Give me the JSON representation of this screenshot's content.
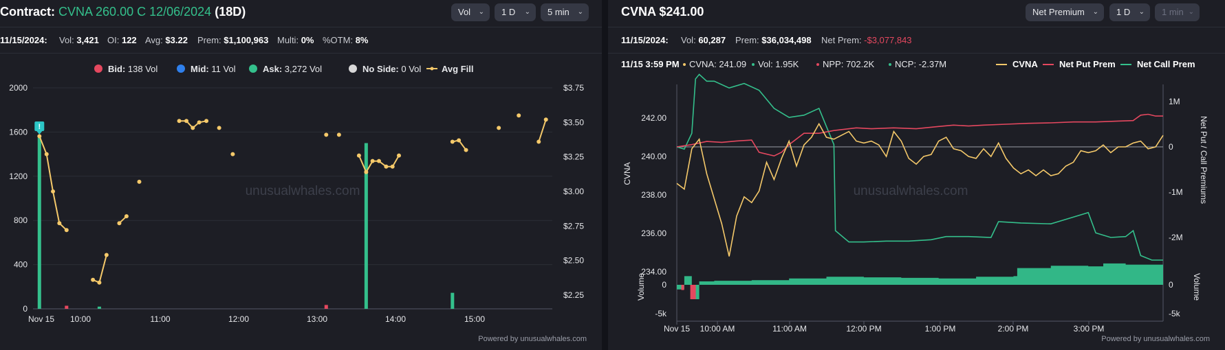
{
  "left": {
    "title_prefix": "Contract:",
    "contract": "CVNA 260.00 C 12/06/2024",
    "dte": "(18D)",
    "controls": [
      "Vol",
      "1 D",
      "5 min"
    ],
    "stats": {
      "date": "11/15/2024:",
      "vol_label": "Vol:",
      "vol": "3,421",
      "oi_label": "OI:",
      "oi": "122",
      "avg_label": "Avg:",
      "avg": "$3.22",
      "prem_label": "Prem:",
      "prem": "$1,100,963",
      "multi_label": "Multi:",
      "multi": "0%",
      "otm_label": "%OTM:",
      "otm": "8%"
    },
    "legend": [
      {
        "name": "Bid:",
        "value": "138 Vol",
        "color": "#e5485f",
        "shape": "dot"
      },
      {
        "name": "Mid:",
        "value": "11 Vol",
        "color": "#2f80ed",
        "shape": "dot"
      },
      {
        "name": "Ask:",
        "value": "3,272 Vol",
        "color": "#34c08c",
        "shape": "dot"
      },
      {
        "name": "No Side:",
        "value": "0 Vol",
        "color": "#d8d8d8",
        "shape": "dot"
      },
      {
        "name": "Avg Fill",
        "value": "",
        "color": "#f5c96a",
        "shape": "line"
      }
    ],
    "watermark": "unusualwhales.com",
    "powered": "Powered by unusualwhales.com",
    "marker_glyph": "!"
  },
  "right": {
    "ticker": "CVNA",
    "price": "$241.00",
    "controls": [
      "Net Premium",
      "1 D",
      "1 min"
    ],
    "stats": {
      "date": "11/15/2024:",
      "vol_label": "Vol:",
      "vol": "60,287",
      "prem_label": "Prem:",
      "prem": "$36,034,498",
      "netprem_label": "Net Prem:",
      "netprem": "-$3,077,843"
    },
    "tooltip": {
      "time": "11/15 3:59 PM",
      "cvna": "CVNA: 241.09",
      "vol": "Vol: 1.95K",
      "npp": "NPP: 702.2K",
      "ncp": "NCP: -2.37M"
    },
    "legend": [
      {
        "name": "CVNA",
        "color": "#f5c96a"
      },
      {
        "name": "Net Put Prem",
        "color": "#e5485f"
      },
      {
        "name": "Net Call Prem",
        "color": "#34c08c"
      }
    ],
    "watermark": "unusualwhales.com",
    "powered": "Powered by unusualwhales.com"
  },
  "chart_data": [
    {
      "type": "bar",
      "title": "",
      "x_ticks": [
        "Nov 15",
        "10:00",
        "11:00",
        "12:00",
        "13:00",
        "14:00",
        "15:00"
      ],
      "y_left_ticks": [
        "0",
        "400",
        "800",
        "1200",
        "1600",
        "2000"
      ],
      "y_right_ticks": [
        "$2.25",
        "$2.50",
        "$2.75",
        "$3.00",
        "$3.25",
        "$3.50",
        "$3.75"
      ],
      "ylim_left": [
        0,
        2000
      ],
      "ylim_right": [
        2.15,
        3.75
      ],
      "xlim_hours": [
        9.5,
        16.0
      ],
      "series": [
        {
          "name": "Ask",
          "color": "#34c08c",
          "points": [
            [
              9.58,
              1550
            ],
            [
              10.33,
              20
            ],
            [
              13.67,
              1500
            ],
            [
              14.75,
              145
            ]
          ]
        },
        {
          "name": "Bid",
          "color": "#e5485f",
          "points": [
            [
              9.92,
              28
            ],
            [
              13.17,
              35
            ]
          ]
        },
        {
          "name": "Mid",
          "color": "#2f80ed",
          "points": []
        },
        {
          "name": "Avg Fill",
          "color": "#f5c96a",
          "line_points": [
            [
              [
                9.58,
                3.4
              ],
              [
                9.67,
                3.27
              ],
              [
                9.75,
                3.0
              ],
              [
                9.83,
                2.77
              ],
              [
                9.92,
                2.72
              ]
            ],
            [
              [
                10.25,
                2.36
              ],
              [
                10.33,
                2.34
              ],
              [
                10.42,
                2.54
              ]
            ],
            [
              [
                10.58,
                2.77
              ],
              [
                10.67,
                2.82
              ]
            ],
            [
              [
                10.83,
                3.07
              ]
            ],
            [
              [
                11.33,
                3.51
              ],
              [
                11.42,
                3.51
              ],
              [
                11.5,
                3.46
              ],
              [
                11.58,
                3.5
              ],
              [
                11.67,
                3.51
              ]
            ],
            [
              [
                11.83,
                3.46
              ]
            ],
            [
              [
                12.0,
                3.27
              ]
            ],
            [
              [
                13.17,
                3.41
              ]
            ],
            [
              [
                13.33,
                3.41
              ]
            ],
            [
              [
                13.58,
                3.26
              ],
              [
                13.67,
                3.14
              ],
              [
                13.75,
                3.22
              ],
              [
                13.83,
                3.22
              ],
              [
                13.92,
                3.18
              ],
              [
                14.0,
                3.18
              ],
              [
                14.08,
                3.26
              ]
            ],
            [
              [
                14.75,
                3.36
              ],
              [
                14.83,
                3.37
              ],
              [
                14.92,
                3.3
              ]
            ],
            [
              [
                15.33,
                3.46
              ]
            ],
            [
              [
                15.58,
                3.55
              ]
            ],
            [
              [
                15.83,
                3.36
              ],
              [
                15.92,
                3.52
              ]
            ]
          ]
        }
      ]
    },
    {
      "type": "line",
      "title": "",
      "x_ticks": [
        "Nov 15",
        "10:00 AM",
        "11:00 AM",
        "12:00 PM",
        "1:00 PM",
        "2:00 PM",
        "3:00 PM"
      ],
      "y_left_label": "CVNA",
      "y_left_ticks": [
        "234.00",
        "236.00",
        "238.00",
        "240.00",
        "242.00"
      ],
      "ylim_left": [
        233.8,
        243.8
      ],
      "y_right_label": "Net Put / Call Premiums",
      "y_right_ticks": [
        "-2M",
        "-1M",
        "0",
        "1M"
      ],
      "ylim_right": [
        -2.8,
        1.5
      ],
      "volume_label": "Volume",
      "volume_ticks": [
        "-5k",
        "0"
      ],
      "volume_ticks_right": [
        "-5k",
        "0"
      ],
      "xlim_hours": [
        9.5,
        16.0
      ],
      "series": [
        {
          "name": "CVNA",
          "color": "#f5c96a",
          "points": [
            [
              9.5,
              238.6
            ],
            [
              9.6,
              238.3
            ],
            [
              9.7,
              240.4
            ],
            [
              9.8,
              240.9
            ],
            [
              9.9,
              239.1
            ],
            [
              10.0,
              237.8
            ],
            [
              10.1,
              236.5
            ],
            [
              10.2,
              234.8
            ],
            [
              10.3,
              236.9
            ],
            [
              10.4,
              237.9
            ],
            [
              10.5,
              237.6
            ],
            [
              10.6,
              238.2
            ],
            [
              10.7,
              239.7
            ],
            [
              10.8,
              238.8
            ],
            [
              10.9,
              239.9
            ],
            [
              11.0,
              240.8
            ],
            [
              11.1,
              239.5
            ],
            [
              11.2,
              240.6
            ],
            [
              11.3,
              241.0
            ],
            [
              11.4,
              241.7
            ],
            [
              11.5,
              241.0
            ],
            [
              11.6,
              240.9
            ],
            [
              11.7,
              241.1
            ],
            [
              11.8,
              241.3
            ],
            [
              11.9,
              240.8
            ],
            [
              12.0,
              240.7
            ],
            [
              12.1,
              240.8
            ],
            [
              12.2,
              240.6
            ],
            [
              12.3,
              240.0
            ],
            [
              12.4,
              241.3
            ],
            [
              12.5,
              240.8
            ],
            [
              12.6,
              239.9
            ],
            [
              12.7,
              239.6
            ],
            [
              12.8,
              240.0
            ],
            [
              12.9,
              240.1
            ],
            [
              13.0,
              240.8
            ],
            [
              13.1,
              241.0
            ],
            [
              13.2,
              240.4
            ],
            [
              13.3,
              240.3
            ],
            [
              13.4,
              240.0
            ],
            [
              13.5,
              239.9
            ],
            [
              13.6,
              240.4
            ],
            [
              13.7,
              240.0
            ],
            [
              13.8,
              240.7
            ],
            [
              13.9,
              239.9
            ],
            [
              14.0,
              239.4
            ],
            [
              14.1,
              239.1
            ],
            [
              14.2,
              239.3
            ],
            [
              14.3,
              239.0
            ],
            [
              14.4,
              239.3
            ],
            [
              14.5,
              239.0
            ],
            [
              14.6,
              239.1
            ],
            [
              14.7,
              239.5
            ],
            [
              14.8,
              239.7
            ],
            [
              14.9,
              240.3
            ],
            [
              15.0,
              240.2
            ],
            [
              15.1,
              240.3
            ],
            [
              15.2,
              240.6
            ],
            [
              15.3,
              240.2
            ],
            [
              15.4,
              240.5
            ],
            [
              15.5,
              240.5
            ],
            [
              15.6,
              240.7
            ],
            [
              15.7,
              240.8
            ],
            [
              15.8,
              240.4
            ],
            [
              15.9,
              240.5
            ],
            [
              16.0,
              241.1
            ]
          ]
        },
        {
          "name": "Net Put Prem",
          "color": "#e5485f",
          "points": [
            [
              9.5,
              0.0
            ],
            [
              9.7,
              0.05
            ],
            [
              9.9,
              0.12
            ],
            [
              10.1,
              0.1
            ],
            [
              10.3,
              0.13
            ],
            [
              10.5,
              0.15
            ],
            [
              10.6,
              -0.12
            ],
            [
              10.8,
              -0.2
            ],
            [
              10.9,
              -0.12
            ],
            [
              11.0,
              0.05
            ],
            [
              11.2,
              0.3
            ],
            [
              11.4,
              0.3
            ],
            [
              11.6,
              0.36
            ],
            [
              11.9,
              0.42
            ],
            [
              12.1,
              0.4
            ],
            [
              12.4,
              0.42
            ],
            [
              12.7,
              0.4
            ],
            [
              13.0,
              0.45
            ],
            [
              13.2,
              0.48
            ],
            [
              13.4,
              0.46
            ],
            [
              13.6,
              0.48
            ],
            [
              13.9,
              0.5
            ],
            [
              14.2,
              0.52
            ],
            [
              14.5,
              0.53
            ],
            [
              14.8,
              0.55
            ],
            [
              15.1,
              0.55
            ],
            [
              15.4,
              0.57
            ],
            [
              15.6,
              0.58
            ],
            [
              15.7,
              0.7
            ],
            [
              15.8,
              0.72
            ],
            [
              15.9,
              0.68
            ],
            [
              16.0,
              0.68
            ]
          ]
        },
        {
          "name": "Net Call Prem",
          "color": "#34c08c",
          "points": [
            [
              9.5,
              0.0
            ],
            [
              9.6,
              -0.05
            ],
            [
              9.7,
              0.3
            ],
            [
              9.75,
              1.5
            ],
            [
              9.8,
              1.6
            ],
            [
              9.9,
              1.45
            ],
            [
              10.0,
              1.45
            ],
            [
              10.2,
              1.3
            ],
            [
              10.4,
              1.4
            ],
            [
              10.6,
              1.25
            ],
            [
              10.8,
              0.85
            ],
            [
              11.0,
              0.65
            ],
            [
              11.2,
              0.7
            ],
            [
              11.4,
              0.85
            ],
            [
              11.5,
              0.45
            ],
            [
              11.6,
              0.05
            ],
            [
              11.62,
              -1.85
            ],
            [
              11.8,
              -2.1
            ],
            [
              12.0,
              -2.1
            ],
            [
              12.3,
              -2.08
            ],
            [
              12.6,
              -2.08
            ],
            [
              12.9,
              -2.05
            ],
            [
              13.1,
              -1.98
            ],
            [
              13.4,
              -1.98
            ],
            [
              13.7,
              -2.0
            ],
            [
              13.8,
              -1.65
            ],
            [
              14.1,
              -1.68
            ],
            [
              14.5,
              -1.7
            ],
            [
              14.7,
              -1.6
            ],
            [
              15.0,
              -1.45
            ],
            [
              15.1,
              -1.9
            ],
            [
              15.3,
              -2.0
            ],
            [
              15.5,
              -1.98
            ],
            [
              15.6,
              -1.85
            ],
            [
              15.7,
              -2.4
            ],
            [
              15.85,
              -2.5
            ],
            [
              16.0,
              -2.5
            ]
          ]
        },
        {
          "name": "Volume",
          "color": "#34c08c",
          "points": [
            [
              9.5,
              -800
            ],
            [
              9.6,
              1500
            ],
            [
              9.7,
              -2500
            ],
            [
              9.8,
              600
            ],
            [
              10.0,
              700
            ],
            [
              10.5,
              800
            ],
            [
              11.0,
              1100
            ],
            [
              11.5,
              1400
            ],
            [
              12.0,
              1300
            ],
            [
              12.5,
              1200
            ],
            [
              13.0,
              1100
            ],
            [
              13.5,
              1400
            ],
            [
              14.0,
              1500
            ],
            [
              14.05,
              2900
            ],
            [
              14.5,
              3300
            ],
            [
              15.0,
              3200
            ],
            [
              15.2,
              3700
            ],
            [
              15.5,
              3500
            ],
            [
              16.0,
              2900
            ]
          ]
        }
      ]
    }
  ]
}
